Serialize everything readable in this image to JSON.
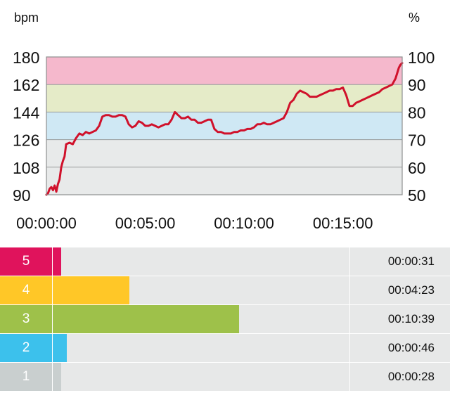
{
  "chart_data": {
    "type": "line",
    "left_unit": "bpm",
    "right_unit": "%",
    "y_ticks_left": [
      "180",
      "162",
      "144",
      "126",
      "108",
      "90"
    ],
    "y_ticks_right": [
      "100",
      "90",
      "80",
      "70",
      "60",
      "50"
    ],
    "x_ticks": [
      "00:00:00",
      "00:05:00",
      "00:10:00",
      "00:15:00"
    ],
    "ylim": [
      90,
      180
    ],
    "xlim_seconds": [
      0,
      1080
    ],
    "line_color": "#d0112b",
    "bands": [
      {
        "from": 90,
        "to": 108,
        "color": "#e8eaea"
      },
      {
        "from": 108,
        "to": 126,
        "color": "#e8eaea"
      },
      {
        "from": 126,
        "to": 144,
        "color": "#cfe8f4"
      },
      {
        "from": 144,
        "to": 162,
        "color": "#e5ebc8"
      },
      {
        "from": 162,
        "to": 180,
        "color": "#f5b8cc"
      }
    ],
    "series": [
      {
        "x": [
          0,
          5,
          10,
          15,
          20,
          25,
          30,
          35,
          40,
          45,
          50,
          55,
          60,
          70,
          80,
          90,
          100,
          110,
          120,
          130,
          140,
          150,
          160,
          170,
          180,
          190,
          200,
          210,
          220,
          230,
          240,
          250,
          260,
          270,
          280,
          290,
          300,
          310,
          320,
          330,
          340,
          350,
          360,
          370,
          380,
          390,
          400,
          410,
          420,
          430,
          440,
          450,
          460,
          470,
          480,
          490,
          500,
          510,
          520,
          530,
          540,
          550,
          560,
          570,
          580,
          590,
          600,
          610,
          620,
          630,
          640,
          650,
          660,
          670,
          680,
          690,
          700,
          710,
          720,
          730,
          740,
          750,
          760,
          770,
          780,
          790,
          800,
          810,
          820,
          830,
          840,
          850,
          860,
          870,
          880,
          890,
          900,
          910,
          920,
          930,
          940,
          950,
          960,
          970,
          980,
          990,
          1000,
          1010,
          1020,
          1030,
          1040,
          1050,
          1060,
          1070,
          1075,
          1080
        ],
        "values": [
          90,
          91,
          94,
          95,
          93,
          96,
          92,
          97,
          100,
          108,
          112,
          115,
          123,
          124,
          123,
          127,
          130,
          129,
          131,
          130,
          131,
          132,
          135,
          141,
          142,
          142,
          141,
          141,
          142,
          142,
          141,
          136,
          134,
          135,
          138,
          137,
          135,
          135,
          136,
          135,
          134,
          135,
          136,
          136,
          139,
          144,
          142,
          140,
          140,
          141,
          139,
          139,
          137,
          137,
          138,
          139,
          139,
          133,
          131,
          131,
          130,
          130,
          130,
          131,
          131,
          132,
          132,
          133,
          133,
          134,
          136,
          136,
          137,
          136,
          136,
          137,
          138,
          139,
          140,
          144,
          150,
          152,
          156,
          158,
          157,
          156,
          154,
          154,
          154,
          155,
          156,
          157,
          158,
          158,
          159,
          159,
          160,
          155,
          148,
          148,
          150,
          151,
          152,
          153,
          154,
          155,
          156,
          157,
          159,
          160,
          161,
          162,
          166,
          173,
          175,
          176
        ]
      }
    ]
  },
  "zones": [
    {
      "number": "5",
      "time": "00:00:31",
      "color": "#e0135c",
      "fill": 0.136
    },
    {
      "number": "4",
      "time": "00:04:23",
      "color": "#ffc727",
      "fill": 0.288
    },
    {
      "number": "3",
      "time": "00:10:39",
      "color": "#9ec14a",
      "fill": 0.531
    },
    {
      "number": "2",
      "time": "00:00:46",
      "color": "#3cc1ec",
      "fill": 0.148
    },
    {
      "number": "1",
      "time": "00:00:28",
      "color": "#c9cfcf",
      "fill": 0.136
    }
  ]
}
